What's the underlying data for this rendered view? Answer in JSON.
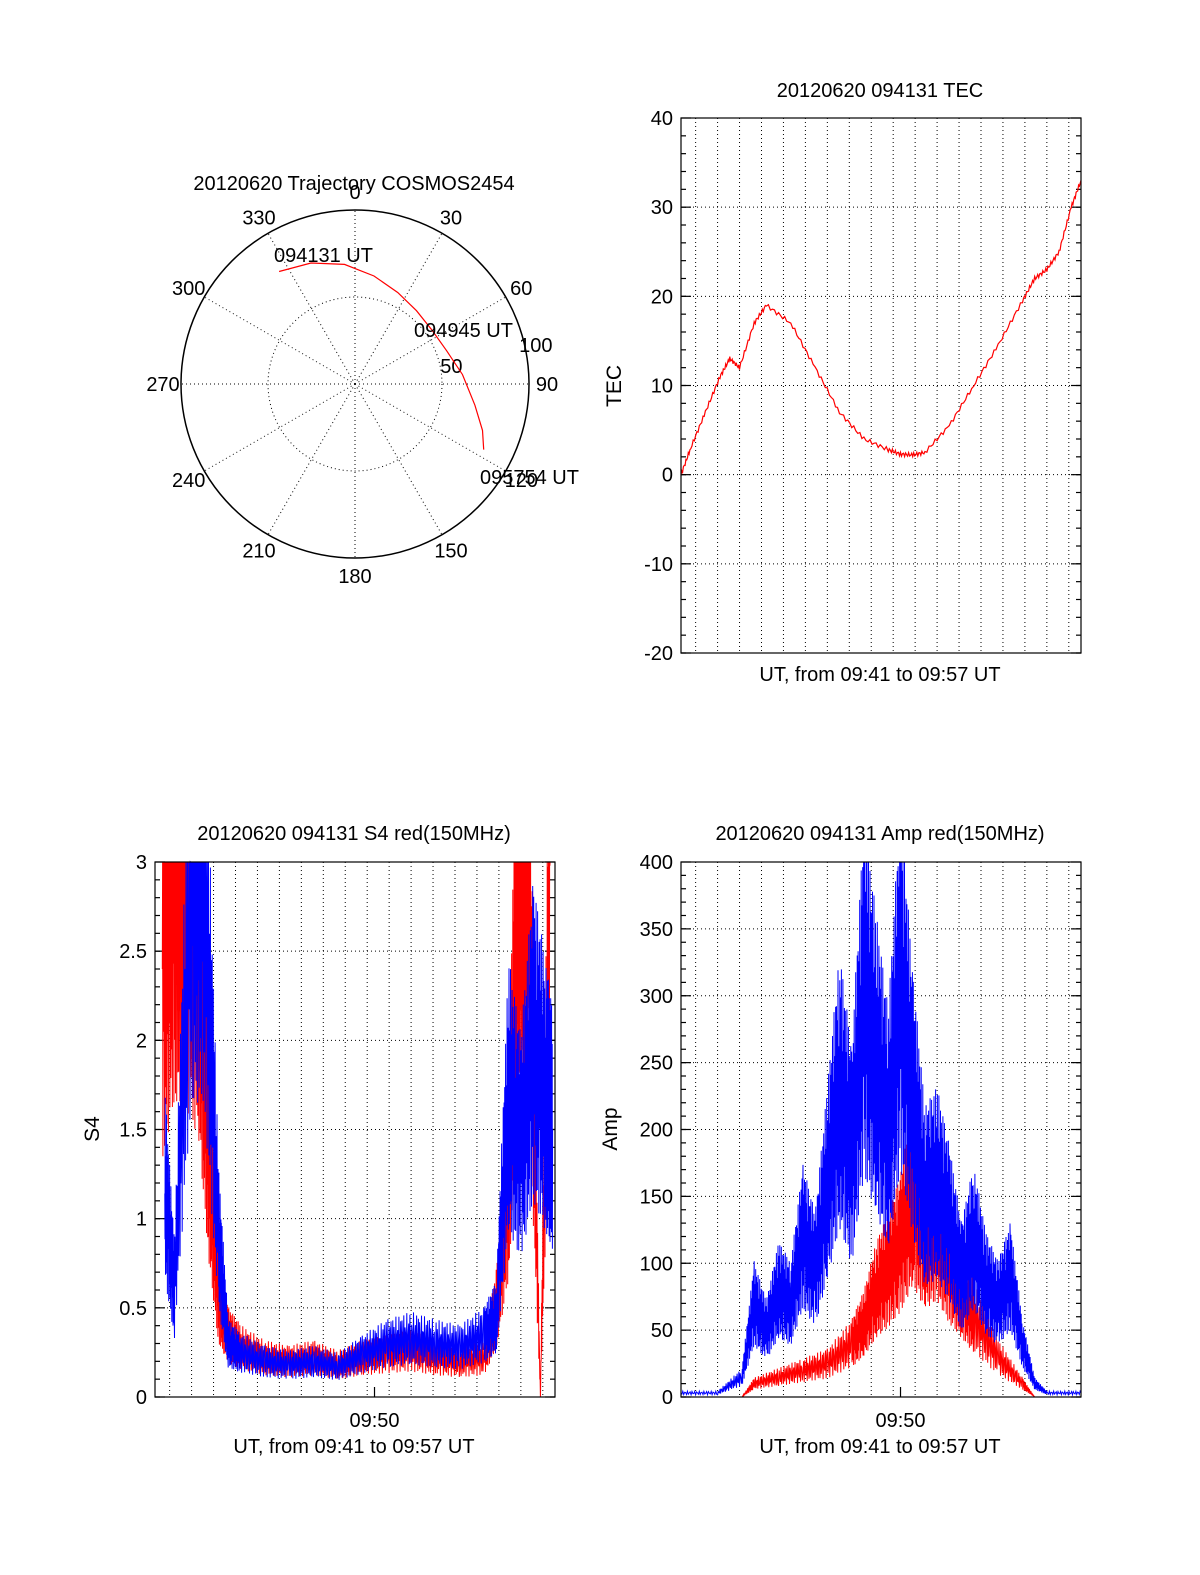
{
  "colors": {
    "red": "#ff0000",
    "blue": "#0000ff",
    "axis": "#000000"
  },
  "chart_data": [
    {
      "id": "trajectory",
      "type": "polar",
      "title": "20120620 Trajectory COSMOS2454",
      "angle_labels": [
        "0",
        "30",
        "60",
        "90",
        "120",
        "150",
        "180",
        "210",
        "240",
        "270",
        "300",
        "330"
      ],
      "radial_labels": [
        "50",
        "100"
      ],
      "rlim": [
        0,
        100
      ],
      "grid": true,
      "annotations": [
        "094131 UT",
        "094945 UT",
        "095754 UT"
      ],
      "series": [
        {
          "color": "#ff0000",
          "azimuth": [
            -34,
            -20,
            -5,
            10,
            25,
            40,
            55,
            70,
            85,
            100,
            110,
            117
          ],
          "radius": [
            78,
            74,
            69,
            63,
            58,
            55,
            54,
            56,
            62,
            70,
            78,
            83
          ]
        }
      ]
    },
    {
      "id": "tec",
      "type": "line",
      "title": "20120620 094131 TEC",
      "xlabel": "UT, from 09:41 to 09:57 UT",
      "ylabel": "TEC",
      "ylim": [
        -20,
        40
      ],
      "yticks": [
        "-20",
        "-10",
        "0",
        "10",
        "20",
        "30",
        "40"
      ],
      "xlim_minutes": [
        0,
        16.4
      ],
      "grid": true,
      "series": [
        {
          "color": "#ff0000",
          "x": [
            0,
            0.4,
            1.0,
            1.6,
            2.0,
            2.4,
            3.0,
            3.5,
            4.5,
            5.5,
            6.5,
            7.5,
            8.5,
            9.0,
            9.5,
            10.0,
            11.0,
            12.0,
            13.0,
            14.0,
            14.5,
            15.0,
            15.5,
            16.0,
            16.4
          ],
          "y": [
            0,
            3,
            7,
            11,
            13,
            12,
            17,
            19,
            17,
            12,
            7,
            4,
            2.8,
            2.3,
            2.2,
            2.5,
            5.5,
            10,
            14.5,
            19.5,
            22,
            23,
            25,
            30,
            33
          ]
        }
      ]
    },
    {
      "id": "s4",
      "type": "line",
      "title": "20120620 094131 S4 red(150MHz)",
      "xlabel": "UT, from 09:41 to 09:57 UT",
      "ylabel": "S4",
      "ylim": [
        0,
        3
      ],
      "yticks": [
        "0",
        "0.5",
        "1",
        "1.5",
        "2",
        "2.5",
        "3"
      ],
      "xticks": [
        "09:50"
      ],
      "xlim_minutes": [
        0,
        16.4
      ],
      "grid": true,
      "series": [
        {
          "color": "#ff0000",
          "x": [
            0.3,
            0.8,
            1.2,
            1.8,
            2.2,
            2.6,
            3.0,
            3.5,
            4.5,
            5.5,
            6.5,
            7.5,
            8.5,
            9.5,
            10.5,
            11.5,
            12.5,
            13.5,
            14.0,
            14.5,
            14.9,
            15.3,
            15.8,
            16.2
          ],
          "y": [
            2.4,
            3.0,
            3.0,
            2.6,
            1.4,
            0.55,
            0.35,
            0.28,
            0.22,
            0.2,
            0.22,
            0.18,
            0.22,
            0.24,
            0.26,
            0.22,
            0.2,
            0.22,
            0.5,
            1.2,
            3.0,
            3.0,
            0.0,
            3.0
          ]
        },
        {
          "color": "#0000ff",
          "x": [
            0.4,
            0.8,
            1.5,
            2.0,
            2.6,
            3.0,
            3.5,
            4.5,
            5.5,
            6.5,
            7.5,
            8.5,
            9.5,
            10.5,
            11.5,
            12.5,
            13.5,
            14.0,
            14.5,
            15.0,
            15.5,
            16.0,
            16.3
          ],
          "y": [
            1.2,
            0.6,
            3.0,
            3.0,
            0.9,
            0.3,
            0.25,
            0.2,
            0.18,
            0.2,
            0.17,
            0.24,
            0.3,
            0.33,
            0.3,
            0.28,
            0.35,
            0.45,
            1.7,
            1.4,
            2.0,
            1.7,
            1.5
          ]
        }
      ]
    },
    {
      "id": "amp",
      "type": "line",
      "title": "20120620 094131 Amp red(150MHz)",
      "xlabel": "UT, from 09:41 to 09:57 UT",
      "ylabel": "Amp",
      "ylim": [
        0,
        400
      ],
      "yticks": [
        "0",
        "50",
        "100",
        "150",
        "200",
        "250",
        "300",
        "350",
        "400"
      ],
      "xticks": [
        "09:50"
      ],
      "xlim_minutes": [
        0,
        16.4
      ],
      "grid": true,
      "series": [
        {
          "color": "#ff0000",
          "x": [
            0,
            2.5,
            3.0,
            4.0,
            5.0,
            6.0,
            7.0,
            7.5,
            8.0,
            8.5,
            9.0,
            9.5,
            10.0,
            10.5,
            11.0,
            11.5,
            12.0,
            13.0,
            14.0,
            14.5,
            16.4
          ],
          "y": [
            0,
            0,
            10,
            15,
            20,
            25,
            40,
            55,
            80,
            95,
            115,
            150,
            120,
            130,
            100,
            80,
            60,
            30,
            10,
            0,
            0
          ]
        },
        {
          "color": "#0000ff",
          "x": [
            0,
            1.5,
            2.5,
            3.0,
            3.5,
            4.0,
            4.5,
            5.0,
            5.5,
            6.0,
            6.5,
            7.0,
            7.5,
            8.0,
            8.5,
            9.0,
            9.5,
            10.0,
            10.5,
            11.0,
            11.5,
            12.0,
            12.5,
            13.0,
            13.5,
            14.0,
            14.5,
            15.0,
            16.4
          ],
          "y": [
            3,
            3,
            15,
            70,
            50,
            80,
            70,
            120,
            95,
            160,
            230,
            180,
            300,
            250,
            200,
            310,
            220,
            150,
            160,
            130,
            90,
            120,
            85,
            70,
            90,
            40,
            10,
            3,
            3
          ]
        }
      ]
    }
  ]
}
